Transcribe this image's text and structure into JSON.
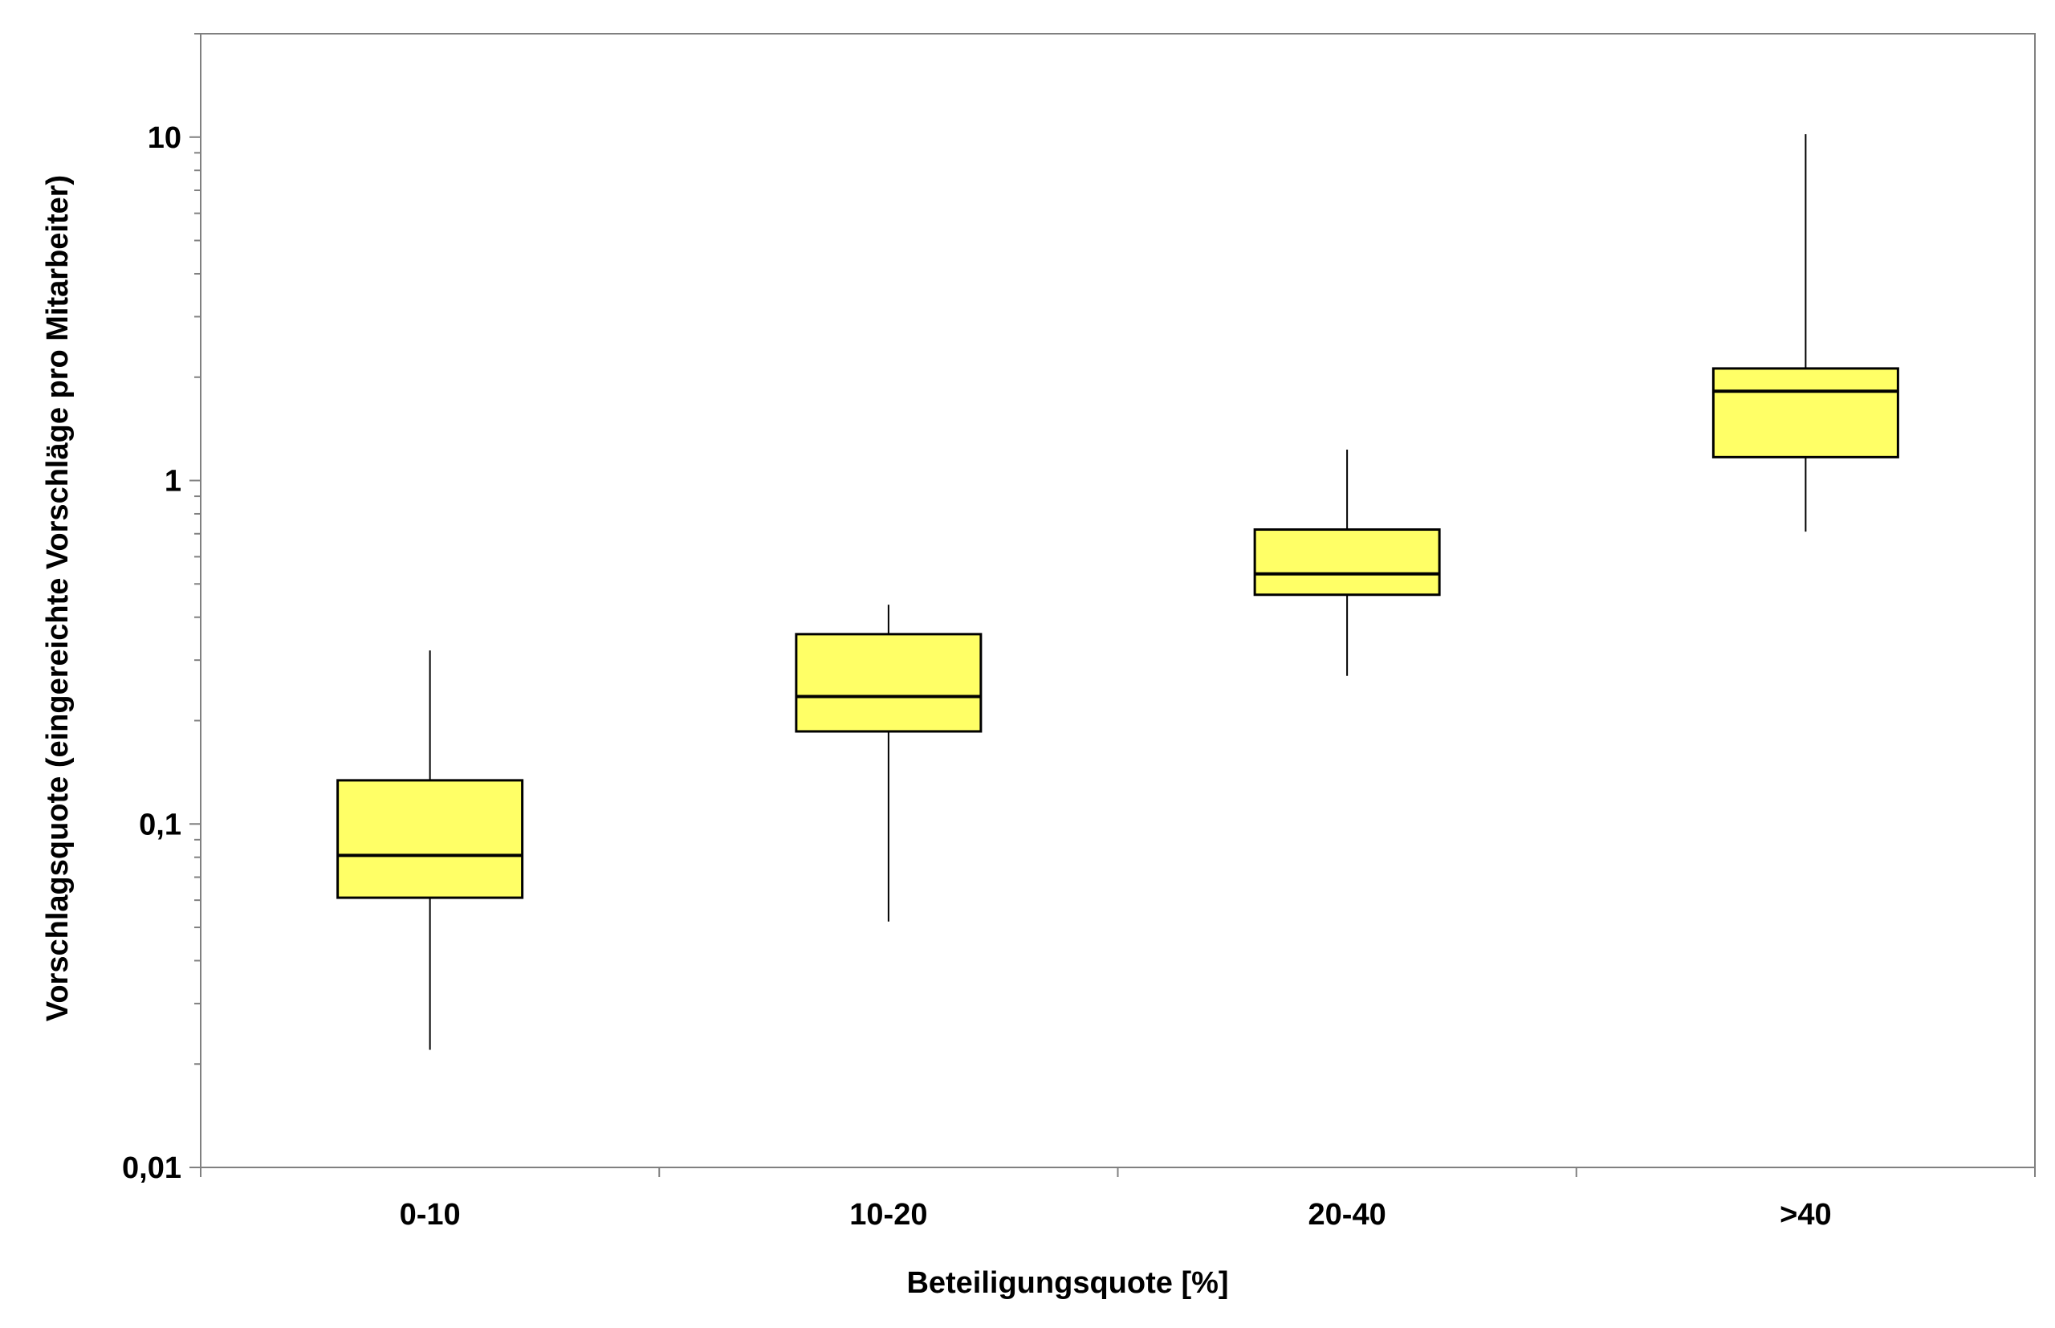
{
  "chart_data": {
    "type": "boxplot",
    "title": "",
    "xlabel": "Beteiligungsquote [%]",
    "ylabel": "Vorschlagsquote (eingereichte Vorschläge pro Mitarbeiter)",
    "yscale": "log",
    "ylim": [
      0.01,
      20
    ],
    "yticks": [
      {
        "value": 0.01,
        "label": "0,01"
      },
      {
        "value": 0.1,
        "label": "0,1"
      },
      {
        "value": 1,
        "label": "1"
      },
      {
        "value": 10,
        "label": "10"
      }
    ],
    "categories": [
      "0-10",
      "10-20",
      "20-40",
      ">40"
    ],
    "boxes": [
      {
        "category": "0-10",
        "min": 0.022,
        "q1": 0.061,
        "median": 0.081,
        "q3": 0.134,
        "max": 0.32
      },
      {
        "category": "10-20",
        "min": 0.052,
        "q1": 0.186,
        "median": 0.235,
        "q3": 0.357,
        "max": 0.435
      },
      {
        "category": "20-40",
        "min": 0.27,
        "q1": 0.465,
        "median": 0.535,
        "q3": 0.72,
        "max": 1.23
      },
      {
        "category": ">40",
        "min": 0.71,
        "q1": 1.17,
        "median": 1.82,
        "q3": 2.12,
        "max": 10.2
      }
    ],
    "box_color": "#FFFF66",
    "grid": false
  }
}
